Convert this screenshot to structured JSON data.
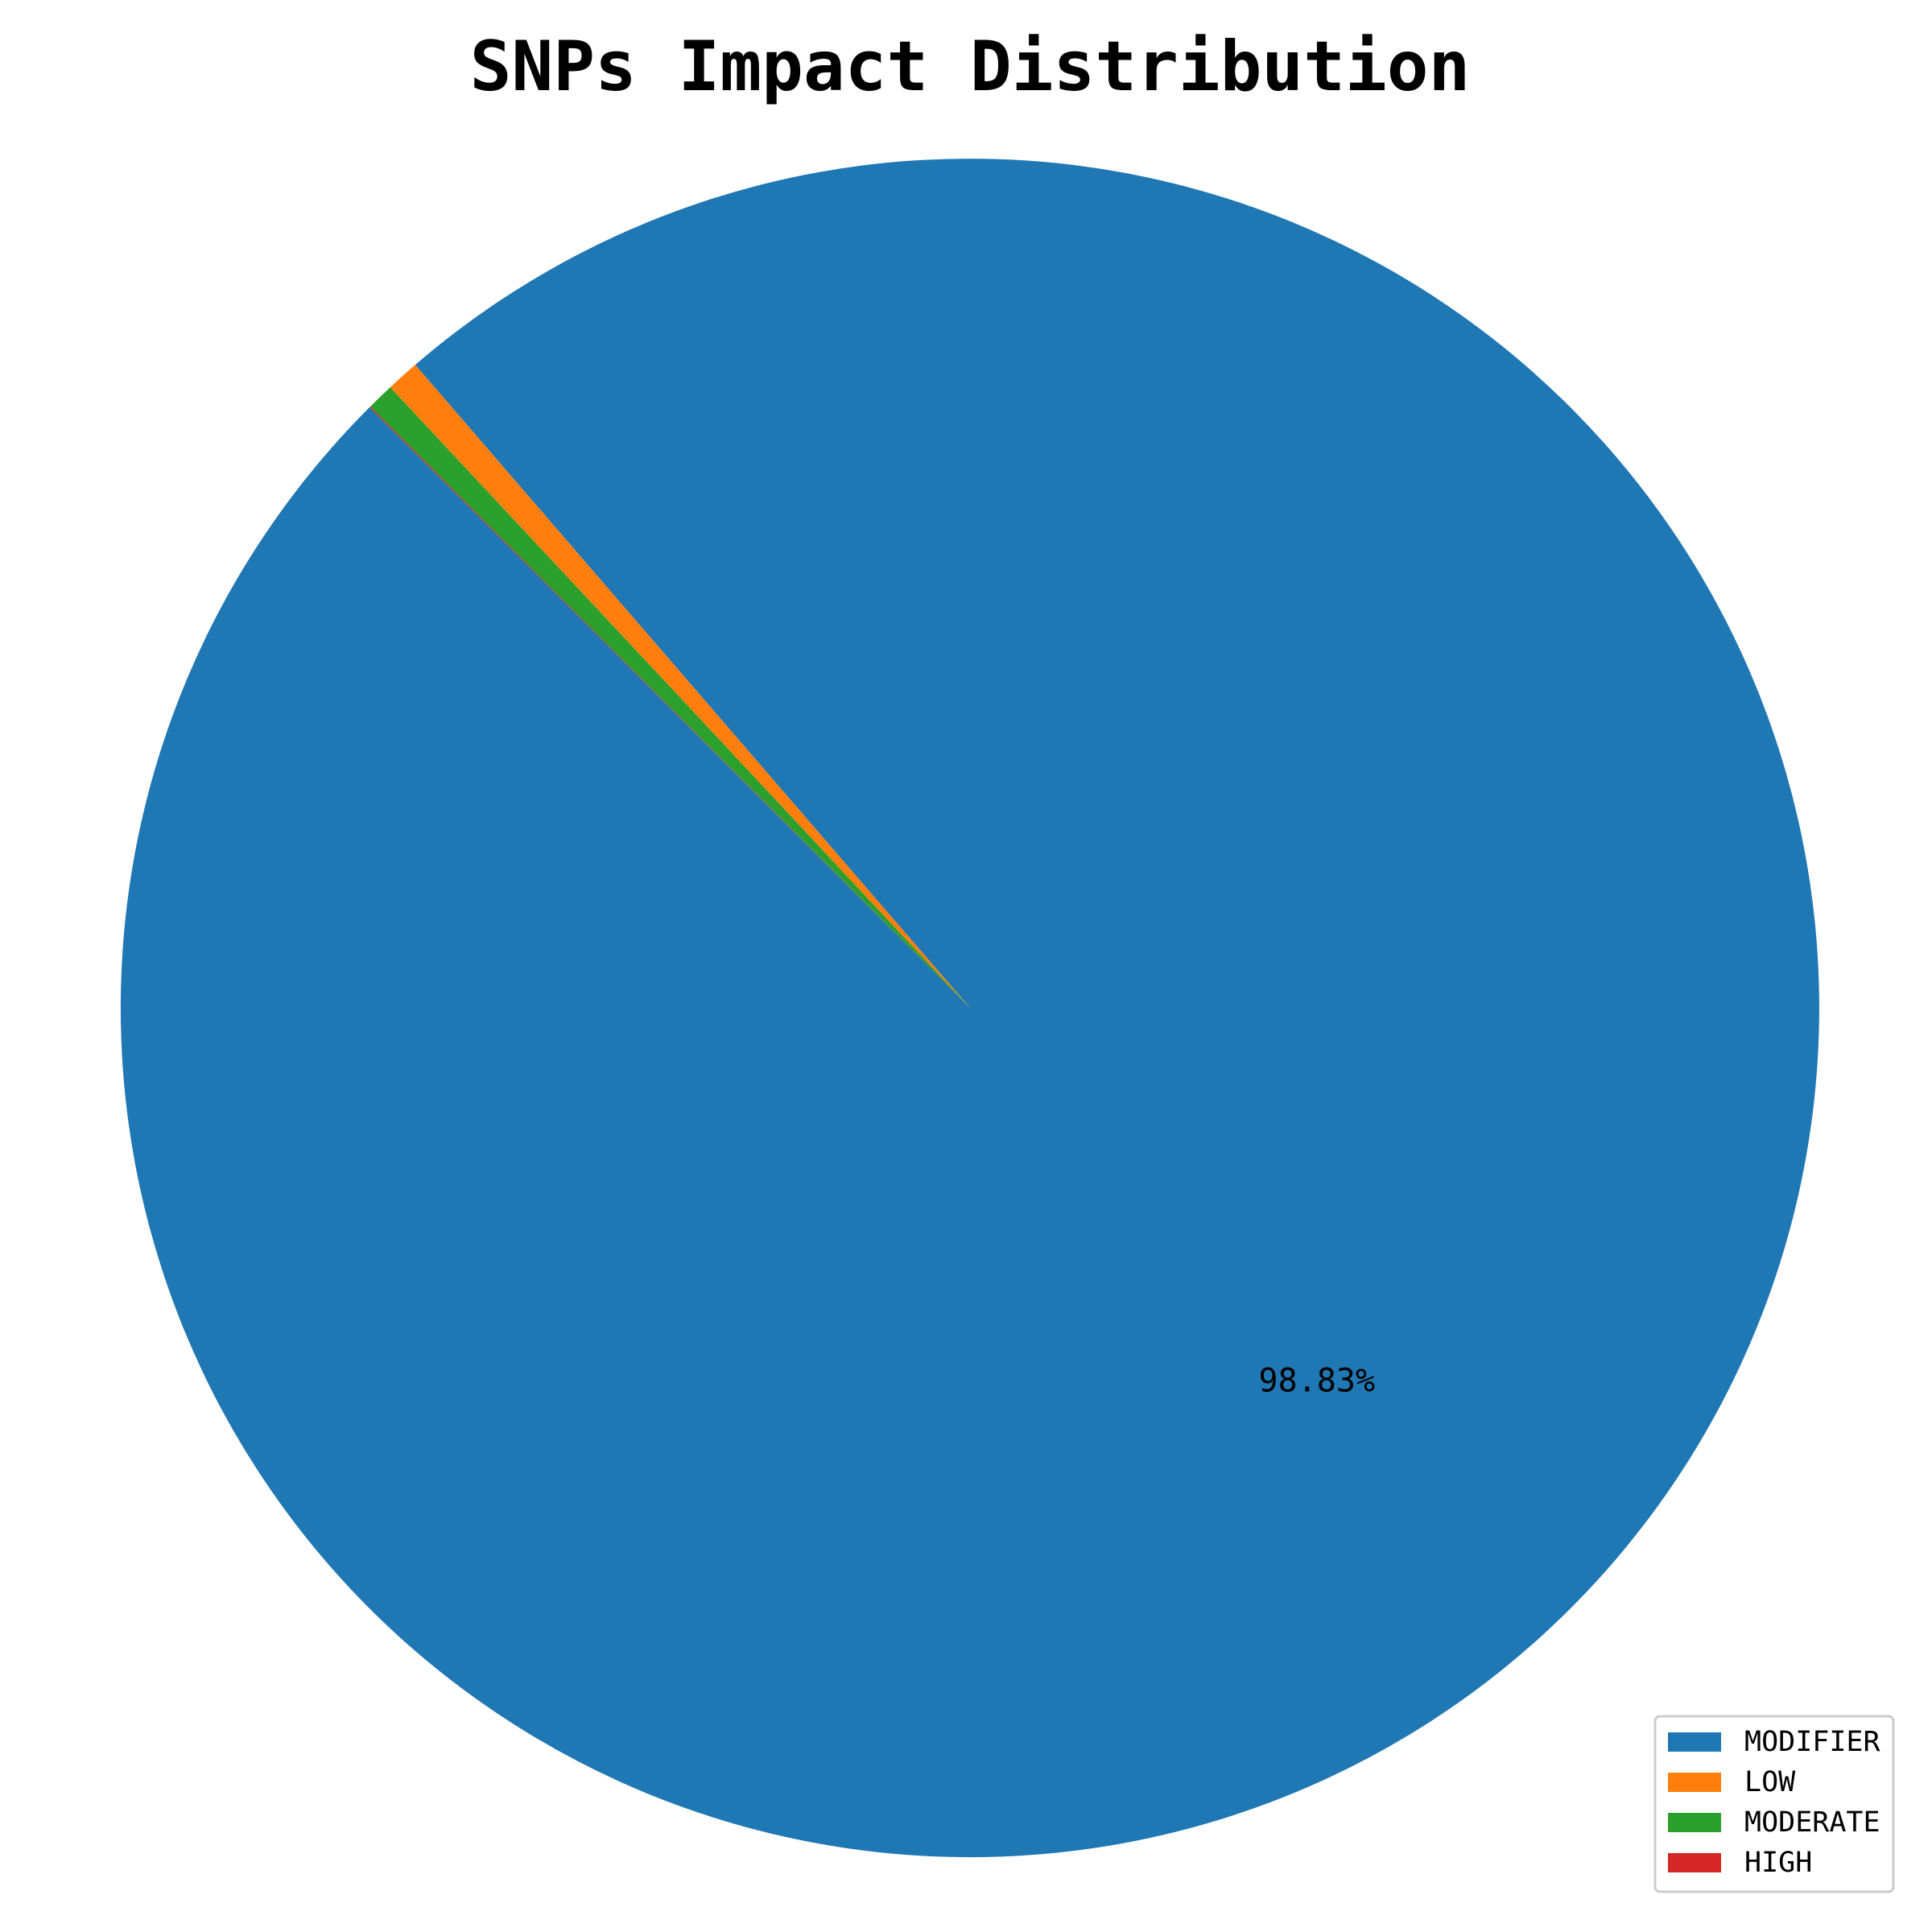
{
  "chart_data": {
    "type": "pie",
    "title": "SNPs Impact Distribution",
    "slices": [
      {
        "label": "MODIFIER",
        "value": 98.83,
        "color": "#1f77b4",
        "show_pct_label": true
      },
      {
        "label": "LOW",
        "value": 0.63,
        "color": "#ff7f0e",
        "show_pct_label": false
      },
      {
        "label": "MODERATE",
        "value": 0.52,
        "color": "#2ca02c",
        "show_pct_label": false
      },
      {
        "label": "HIGH",
        "value": 0.02,
        "color": "#d62728",
        "show_pct_label": false
      }
    ],
    "pct_labels": [
      "98.83%"
    ],
    "start_angle_deg": 135,
    "direction": "counterclockwise",
    "legend": {
      "placement": "lower-right",
      "entries": [
        "MODIFIER",
        "LOW",
        "MODERATE",
        "HIGH"
      ]
    }
  }
}
